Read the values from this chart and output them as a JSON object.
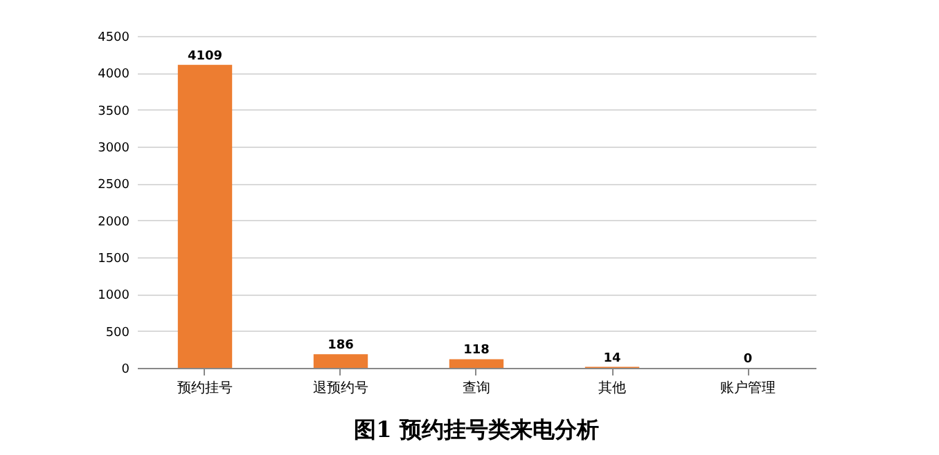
{
  "chart_data": {
    "type": "bar",
    "title": "图1    预约挂号类来电分析",
    "categories": [
      "预约挂号",
      "退预约号",
      "查询",
      "其他",
      "账户管理"
    ],
    "values": [
      4109,
      186,
      118,
      14,
      0
    ],
    "color": "#ed7d31",
    "ylim": [
      0,
      4500
    ],
    "yticks": [
      0,
      500,
      1000,
      1500,
      2000,
      2500,
      3000,
      3500,
      4000,
      4500
    ],
    "grid": "y",
    "data_labels": true
  }
}
